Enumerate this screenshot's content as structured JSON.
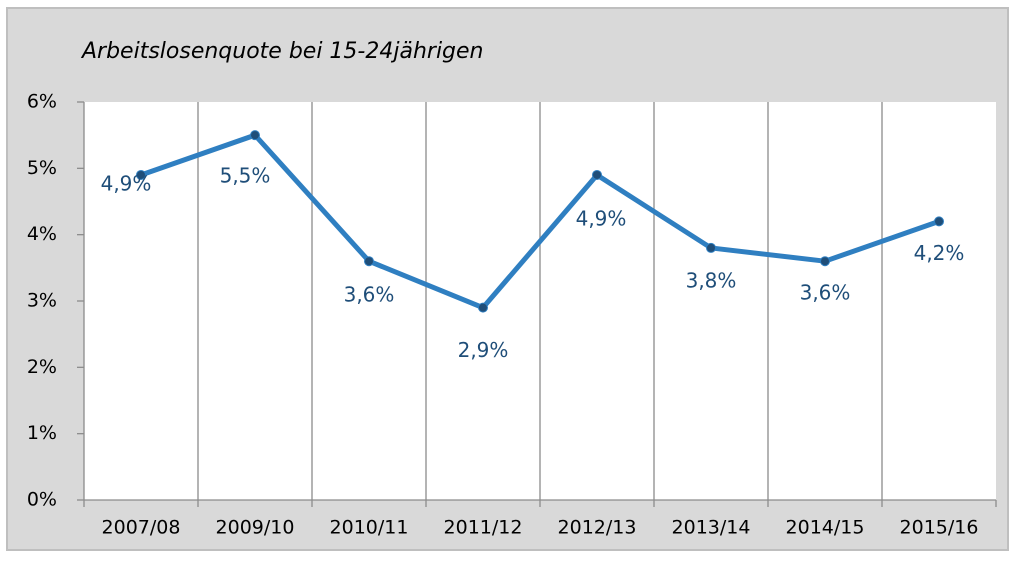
{
  "chart_data": {
    "type": "line",
    "title": "Arbeitslosenquote bei 15-24jährigen",
    "categories": [
      "2007/08",
      "2009/10",
      "2010/11",
      "2011/12",
      "2012/13",
      "2013/14",
      "2014/15",
      "2015/16"
    ],
    "series": [
      {
        "name": "Arbeitslosenquote",
        "color": "#2f7fc1",
        "values": [
          4.9,
          5.5,
          3.6,
          2.9,
          4.9,
          3.8,
          3.6,
          4.2
        ],
        "value_labels": [
          "4,9%",
          "5,5%",
          "3,6%",
          "2,9%",
          "4,9%",
          "3,8%",
          "3,6%",
          "4,2%"
        ]
      }
    ],
    "ylim": [
      0,
      6
    ],
    "yticks": [
      {
        "value": 0,
        "label": "0%"
      },
      {
        "value": 1,
        "label": "1%"
      },
      {
        "value": 2,
        "label": "2%"
      },
      {
        "value": 3,
        "label": "3%"
      },
      {
        "value": 4,
        "label": "4%"
      },
      {
        "value": 5,
        "label": "5%"
      },
      {
        "value": 6,
        "label": "6%"
      }
    ],
    "grid": true
  }
}
